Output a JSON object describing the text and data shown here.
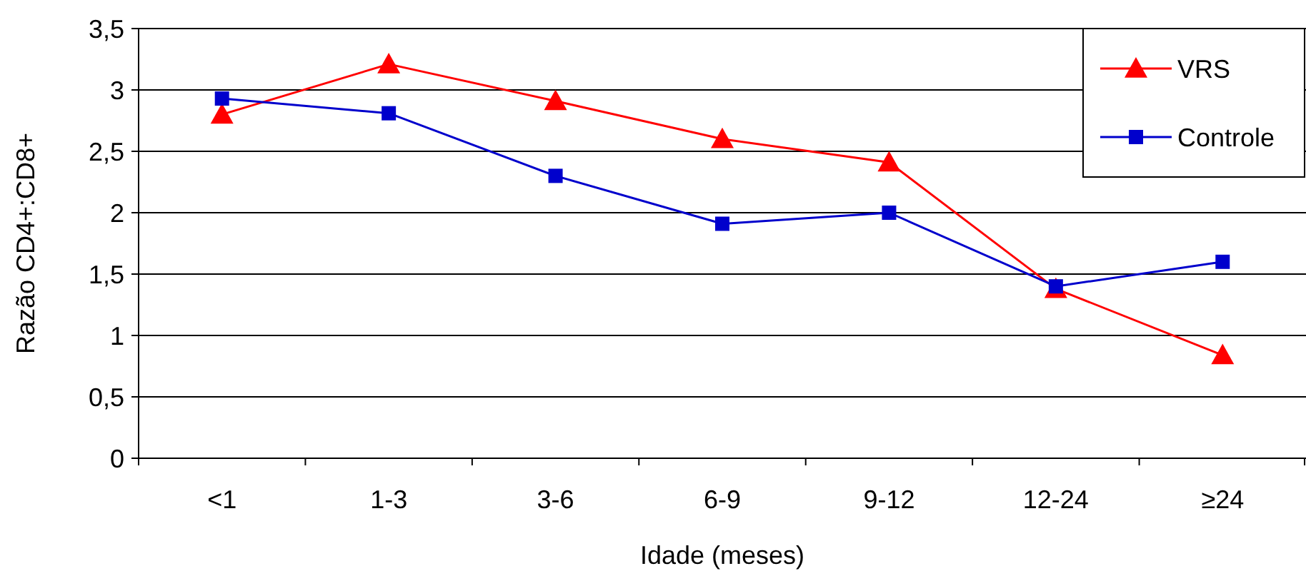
{
  "chart_data": {
    "type": "line",
    "xlabel": "Idade (meses)",
    "ylabel": "Razão CD4+:CD8+",
    "categories": [
      "<1",
      "1-3",
      "3-6",
      "6-9",
      "9-12",
      "12-24",
      "≥24"
    ],
    "series": [
      {
        "name": "VRS",
        "color": "#ff0000",
        "marker": "triangle",
        "values": [
          2.8,
          3.21,
          2.91,
          2.6,
          2.41,
          1.38,
          0.84
        ]
      },
      {
        "name": "Controle",
        "color": "#0000cc",
        "marker": "square",
        "values": [
          2.93,
          2.81,
          2.3,
          1.91,
          2.0,
          1.4,
          1.6
        ]
      }
    ],
    "ylim": [
      0,
      3.5
    ],
    "yticks": [
      0,
      {
        "value": 0.5,
        "label": "0,5"
      },
      1,
      {
        "value": 1.5,
        "label": "1,5"
      },
      2,
      {
        "value": 2.5,
        "label": "2,5"
      },
      3,
      {
        "value": 3.5,
        "label": "3,5"
      }
    ],
    "grid": "y",
    "legend": "top right"
  }
}
